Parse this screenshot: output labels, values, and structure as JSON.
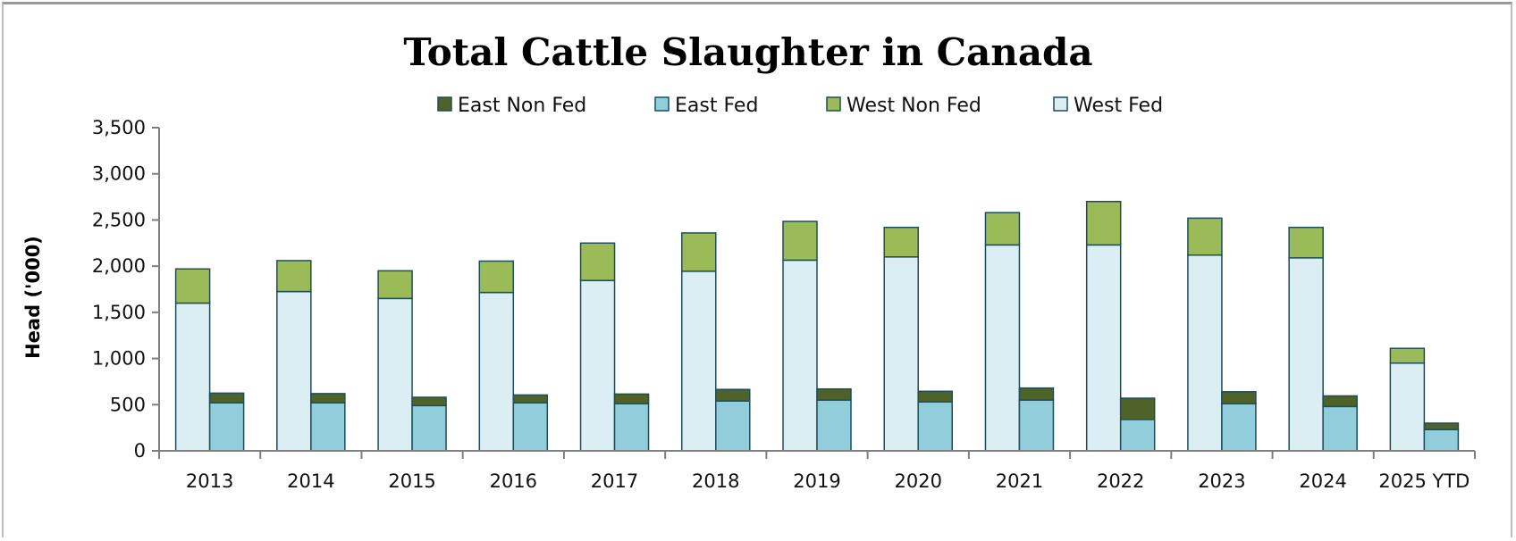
{
  "chart_data": {
    "type": "bar",
    "title": "Total Cattle Slaughter in Canada",
    "xlabel": "",
    "ylabel": "Head ('000)",
    "ylim": [
      0,
      3500
    ],
    "yticks": [
      0,
      500,
      1000,
      1500,
      2000,
      2500,
      3000,
      3500
    ],
    "ytick_labels": [
      "0",
      "500",
      "1,000",
      "1,500",
      "2,000",
      "2,500",
      "3,000",
      "3,500"
    ],
    "grid": false,
    "legend_position": "top",
    "categories": [
      "2013",
      "2014",
      "2015",
      "2016",
      "2017",
      "2018",
      "2019",
      "2020",
      "2021",
      "2022",
      "2023",
      "2024",
      "2025 YTD"
    ],
    "stacks": {
      "west": [
        "West Fed",
        "West Non Fed"
      ],
      "east": [
        "East Fed",
        "East Non Fed"
      ]
    },
    "legend_order": [
      "East Non Fed",
      "East Fed",
      "West Non Fed",
      "West Fed"
    ],
    "series": [
      {
        "name": "West Fed",
        "color": "#daeef3",
        "values": [
          1600,
          1725,
          1650,
          1715,
          1845,
          1945,
          2065,
          2100,
          2230,
          2230,
          2120,
          2090,
          950
        ]
      },
      {
        "name": "West Non Fed",
        "color": "#9bbb59",
        "values": [
          370,
          335,
          300,
          340,
          405,
          415,
          420,
          320,
          350,
          470,
          400,
          330,
          160
        ]
      },
      {
        "name": "East Fed",
        "color": "#92cddc",
        "values": [
          520,
          520,
          490,
          520,
          510,
          540,
          550,
          530,
          550,
          340,
          510,
          480,
          230
        ]
      },
      {
        "name": "East Non Fed",
        "color": "#4f6228",
        "values": [
          105,
          100,
          90,
          85,
          105,
          125,
          120,
          115,
          130,
          230,
          130,
          115,
          70
        ]
      }
    ],
    "colors": {
      "bar_outline": "#1f4e5a",
      "axis": "#7f7f7f"
    }
  }
}
